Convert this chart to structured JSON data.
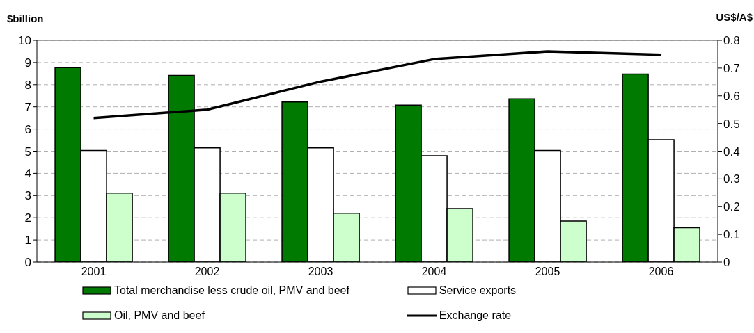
{
  "chart_data": {
    "type": "bar",
    "ylabel": "$billion",
    "y2label": "US$/A$",
    "categories": [
      "2001",
      "2002",
      "2003",
      "2004",
      "2005",
      "2006"
    ],
    "series": [
      {
        "name": "Total merchandise less crude oil, PMV and beef",
        "color": "#007a00",
        "values": [
          8.77,
          8.42,
          7.22,
          7.08,
          7.36,
          8.48
        ]
      },
      {
        "name": "Service exports",
        "color": "#ffffff",
        "values": [
          5.03,
          5.15,
          5.15,
          4.8,
          5.03,
          5.52
        ]
      },
      {
        "name": "Oil, PMV and beef",
        "color": "#ccffcc",
        "values": [
          3.11,
          3.11,
          2.2,
          2.41,
          1.85,
          1.55
        ]
      },
      {
        "name": "Exchange rate",
        "type": "line",
        "axis": "y2",
        "color": "#000000",
        "values": [
          0.52,
          0.55,
          0.651,
          0.732,
          0.76,
          0.748
        ]
      }
    ],
    "ylim": [
      0,
      10
    ],
    "yticks": [
      0,
      1,
      2,
      3,
      4,
      5,
      6,
      7,
      8,
      9,
      10
    ],
    "y2lim": [
      0,
      0.8
    ],
    "y2ticks": [
      0,
      0.1,
      0.2,
      0.3,
      0.4,
      0.5,
      0.6,
      0.7,
      0.8
    ],
    "grid": "y",
    "legend": "bottom"
  }
}
